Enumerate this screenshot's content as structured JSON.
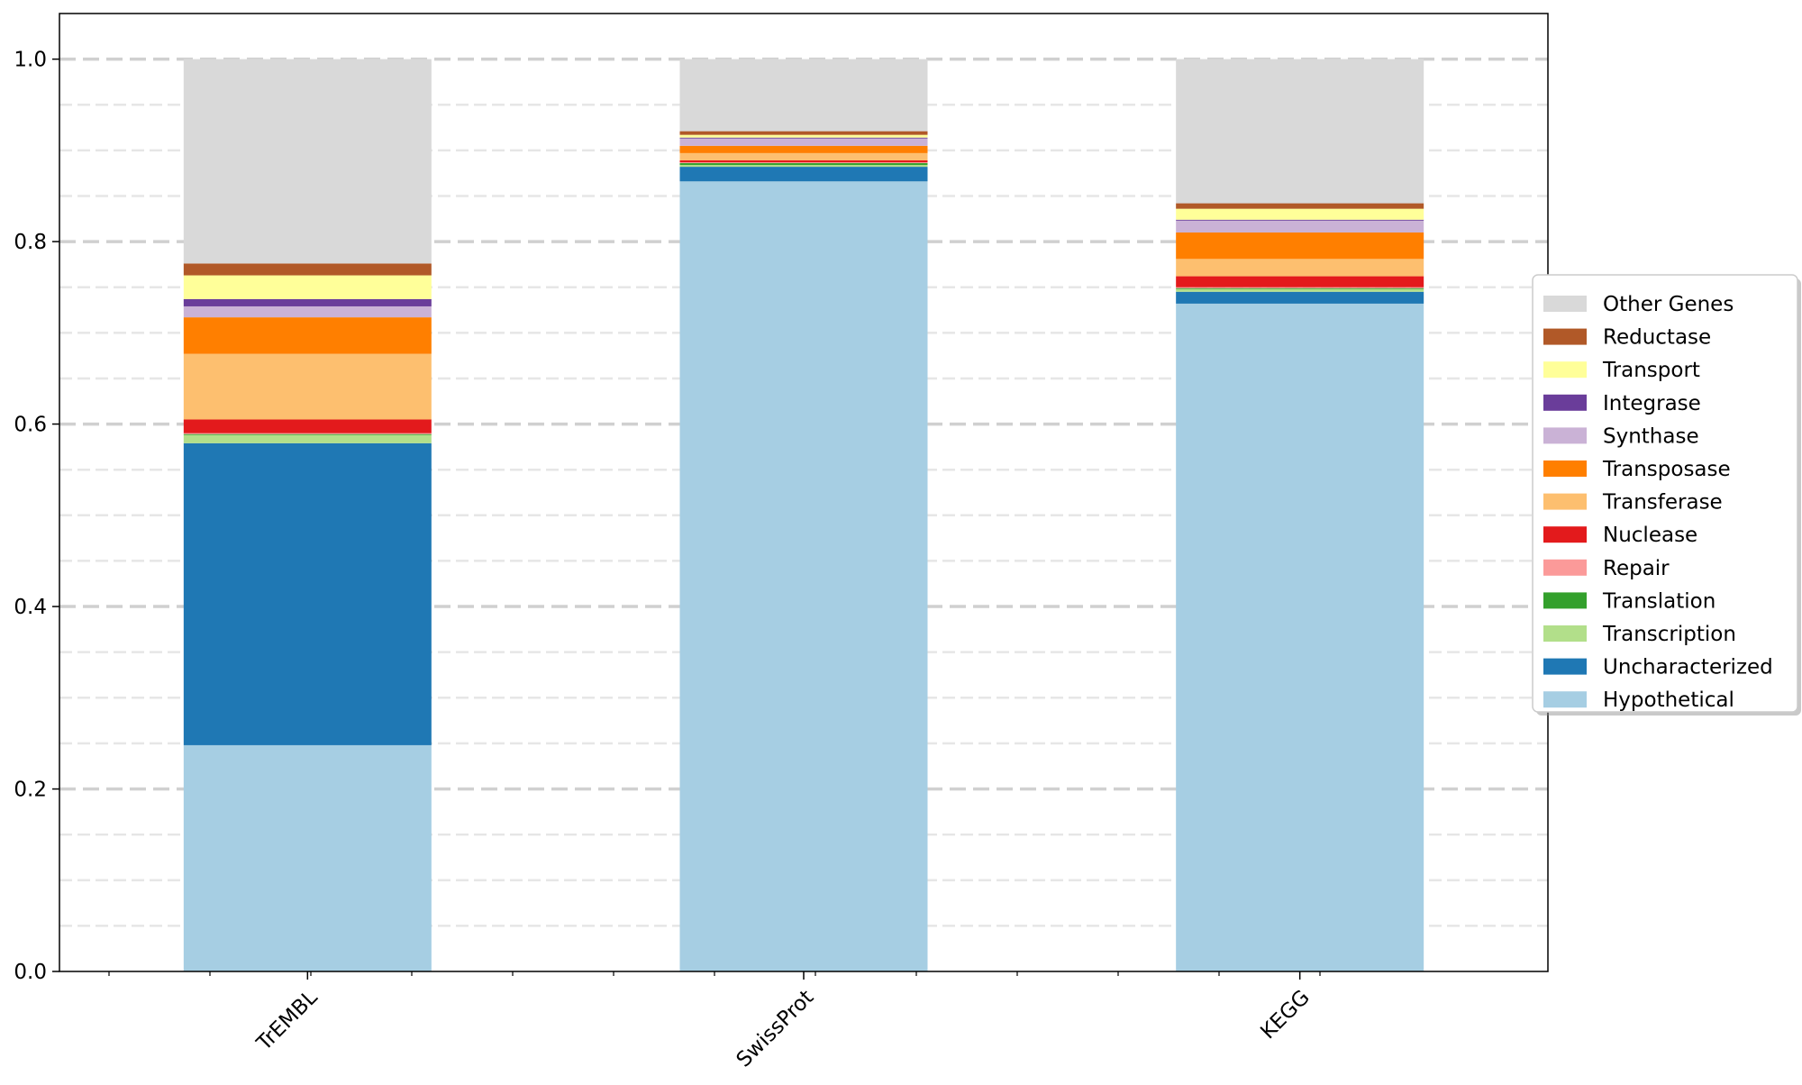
{
  "chart_data": {
    "type": "bar",
    "stacked": true,
    "categories": [
      "TrEMBL",
      "SwissProt",
      "KEGG"
    ],
    "series": [
      {
        "name": "Hypothetical",
        "color": "#a6cee3",
        "values": [
          0.248,
          0.866,
          0.732
        ]
      },
      {
        "name": "Uncharacterized",
        "color": "#1f78b4",
        "values": [
          0.331,
          0.016,
          0.013
        ]
      },
      {
        "name": "Transcription",
        "color": "#b2df8a",
        "values": [
          0.009,
          0.002,
          0.003
        ]
      },
      {
        "name": "Translation",
        "color": "#33a02c",
        "values": [
          0.001,
          0.002,
          0.001
        ]
      },
      {
        "name": "Repair",
        "color": "#fb9a99",
        "values": [
          0.001,
          0.001,
          0.001
        ]
      },
      {
        "name": "Nuclease",
        "color": "#e31a1c",
        "values": [
          0.015,
          0.002,
          0.012
        ]
      },
      {
        "name": "Transferase",
        "color": "#fdbf6f",
        "values": [
          0.072,
          0.008,
          0.019
        ]
      },
      {
        "name": "Transposase",
        "color": "#ff7f00",
        "values": [
          0.04,
          0.008,
          0.029
        ]
      },
      {
        "name": "Synthase",
        "color": "#cab2d6",
        "values": [
          0.012,
          0.008,
          0.013
        ]
      },
      {
        "name": "Integrase",
        "color": "#6a3d9a",
        "values": [
          0.008,
          0.001,
          0.001
        ]
      },
      {
        "name": "Transport",
        "color": "#ffff99",
        "values": [
          0.026,
          0.003,
          0.012
        ]
      },
      {
        "name": "Reductase",
        "color": "#b15928",
        "values": [
          0.013,
          0.004,
          0.006
        ]
      },
      {
        "name": "Other Genes",
        "color": "#d9d9d9",
        "values": [
          0.224,
          0.079,
          0.158
        ]
      }
    ],
    "title": "",
    "xlabel": "",
    "ylabel": "",
    "ylim": [
      0,
      1.05
    ],
    "yticks": [
      0.0,
      0.2,
      0.4,
      0.6,
      0.8,
      1.0
    ],
    "ytick_labels": [
      "0.0",
      "0.2",
      "0.4",
      "0.6",
      "0.8",
      "1.0"
    ],
    "grid": "dashed horizontal, major and minor",
    "legend_position": "right"
  }
}
